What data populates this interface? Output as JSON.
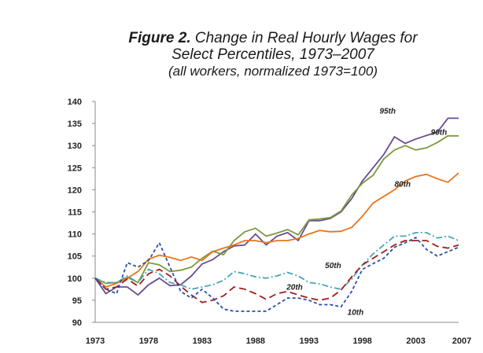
{
  "title": {
    "figure": "Figure 2.",
    "line1_rest": " Change in Real Hourly Wages for",
    "line2": "Select Percentiles, 1973–2007",
    "line3": "(all workers, normalized 1973=100)"
  },
  "chart_data": {
    "type": "line",
    "ylim": [
      90,
      140
    ],
    "yticks": [
      90,
      95,
      100,
      105,
      110,
      115,
      120,
      125,
      130,
      135,
      140
    ],
    "xlim": [
      1973,
      2007
    ],
    "xticks": [
      1973,
      1978,
      1983,
      1988,
      1993,
      1998,
      2003,
      2007
    ],
    "grid": false,
    "x": [
      1973,
      1974,
      1975,
      1976,
      1977,
      1978,
      1979,
      1980,
      1981,
      1982,
      1983,
      1984,
      1985,
      1986,
      1987,
      1988,
      1989,
      1990,
      1991,
      1992,
      1993,
      1994,
      1995,
      1996,
      1997,
      1998,
      1999,
      2000,
      2001,
      2002,
      2003,
      2004,
      2005,
      2006,
      2007
    ],
    "series": [
      {
        "name": "95th",
        "color": "#6a4c93",
        "dash": "none",
        "values": [
          100,
          96.5,
          98,
          98,
          96.2,
          98.5,
          100,
          98.3,
          98.5,
          100.5,
          103.2,
          104.2,
          106,
          107.3,
          107.5,
          110,
          107.5,
          109.5,
          110.3,
          108.5,
          113,
          113,
          113.5,
          115,
          118,
          122,
          125,
          128,
          132,
          130.5,
          131.5,
          132.3,
          133,
          136.2,
          136.2
        ]
      },
      {
        "name": "90th",
        "color": "#7a9a3c",
        "dash": "none",
        "values": [
          100,
          98.8,
          99,
          100.2,
          99,
          103.5,
          103,
          101.5,
          101.8,
          102.5,
          104.5,
          106.1,
          105.3,
          108.5,
          110.5,
          111.3,
          109.5,
          110.2,
          111,
          109.8,
          113.2,
          113.4,
          113.7,
          115.2,
          118.8,
          121.5,
          123.3,
          127,
          129,
          130,
          129,
          129.5,
          130.7,
          132.2,
          132.2
        ]
      },
      {
        "name": "80th",
        "color": "#e8751a",
        "dash": "none",
        "values": [
          100,
          98,
          98.8,
          100,
          101.5,
          104.3,
          105.2,
          104.7,
          104,
          104.8,
          104,
          106,
          106.8,
          107.5,
          108.5,
          108.5,
          108,
          108.5,
          108.5,
          109,
          110,
          110.8,
          110.5,
          110.6,
          111.5,
          114,
          117,
          118.5,
          120,
          122,
          123,
          123.5,
          122.5,
          121.7,
          123.8
        ]
      },
      {
        "name": "50th",
        "color": "#4aa5b8",
        "dash": "8,3,2,3",
        "values": [
          100,
          99,
          99,
          100.5,
          99,
          102,
          101,
          99,
          98.5,
          97.5,
          98,
          98.5,
          99.5,
          101.5,
          101,
          100.3,
          100,
          100.5,
          101.3,
          100.5,
          99,
          98.7,
          98,
          97.5,
          99.8,
          103,
          105.5,
          107.5,
          109.5,
          109.5,
          110.3,
          110.3,
          109.1,
          109.5,
          108.5
        ]
      },
      {
        "name": "20th",
        "color": "#a01e1e",
        "dash": "9,5",
        "values": [
          100,
          97.5,
          98,
          99.8,
          98.2,
          101,
          102,
          100.5,
          98.2,
          96.2,
          94.5,
          95,
          96,
          98,
          97.5,
          96.5,
          95.2,
          96.5,
          97,
          96.2,
          95.5,
          95,
          95.5,
          97.3,
          100.3,
          103,
          104.5,
          106,
          107.5,
          108.5,
          108.5,
          108.5,
          107.2,
          106.8,
          107.5
        ]
      },
      {
        "name": "10th",
        "color": "#2a4ea6",
        "dash": "4,3",
        "values": [
          100,
          97.5,
          96.5,
          103.5,
          102.5,
          104,
          108,
          102.5,
          97,
          95.5,
          97.5,
          95.5,
          93,
          92.5,
          92.5,
          92.5,
          92.5,
          94,
          95.5,
          95.5,
          95,
          94,
          94,
          93.5,
          97,
          102,
          103.3,
          104.5,
          107,
          108,
          109.2,
          106.5,
          105,
          106,
          107
        ]
      }
    ],
    "labels": [
      {
        "text": "95th",
        "x": 1999.6,
        "y": 137.2
      },
      {
        "text": "90th",
        "x": 2004.4,
        "y": 132.4
      },
      {
        "text": "80th",
        "x": 2001.0,
        "y": 120.7
      },
      {
        "text": "50th",
        "x": 1994.5,
        "y": 102.3
      },
      {
        "text": "20th",
        "x": 1990.9,
        "y": 97.4
      },
      {
        "text": "10th",
        "x": 1996.6,
        "y": 91.7
      }
    ]
  }
}
